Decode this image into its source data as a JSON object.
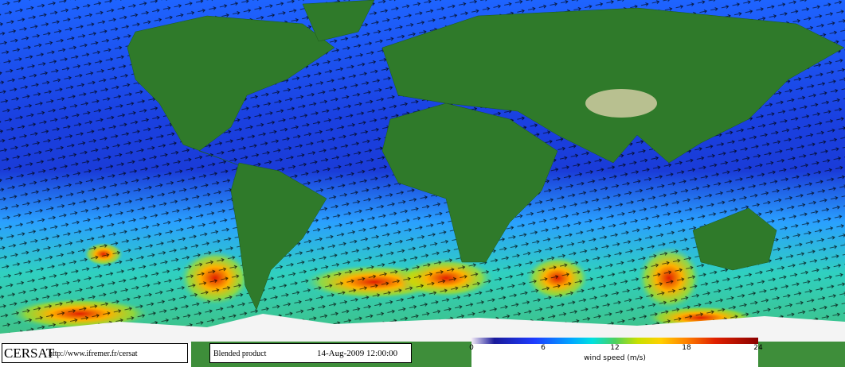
{
  "footer": {
    "logo": "CERSAT",
    "url": "http://www.ifremer.fr/cersat",
    "product": "Blended product",
    "date": "14-Aug-2009 12:00:00"
  },
  "colorbar": {
    "label": "wind speed (m/s)",
    "lim": [
      0,
      24
    ],
    "ticks": [
      0,
      6,
      12,
      18,
      24
    ]
  }
}
